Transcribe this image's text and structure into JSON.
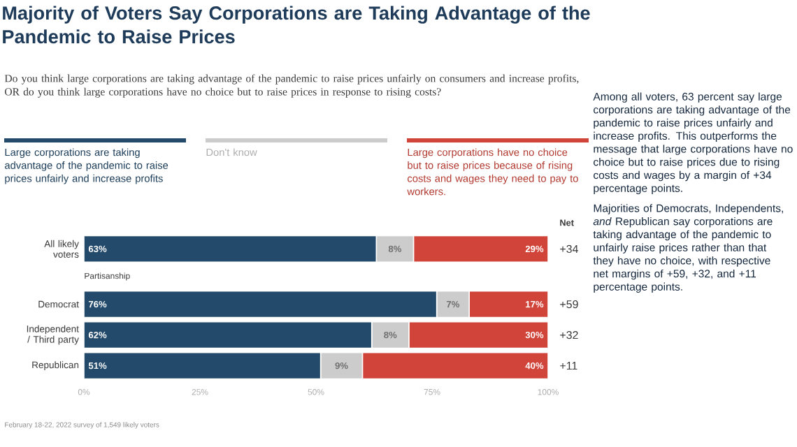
{
  "chart_data": {
    "type": "bar",
    "orientation": "horizontal",
    "stacked": true,
    "title": "Majority of Voters Say Corporations are Taking Advantage of the Pandemic to Raise Prices",
    "subtitle": "Do you think large corporations are taking advantage of the pandemic to raise prices unfairly on consumers and increase profits, OR do you think large corporations have no choice but to raise prices in response to rising costs?",
    "categories": [
      "All likely voters",
      "Democrat",
      "Independent / Third party",
      "Republican"
    ],
    "series": [
      {
        "name": "Large corporations are taking advantage of the pandemic to raise prices unfairly and increase profits",
        "color": "#234a6b",
        "values": [
          63,
          76,
          62,
          51
        ],
        "value_labels": [
          "63%",
          "76%",
          "62%",
          "51%"
        ]
      },
      {
        "name": "Don't know",
        "color": "#cccccc",
        "values": [
          8,
          7,
          8,
          9
        ],
        "value_labels": [
          "8%",
          "7%",
          "8%",
          "9%"
        ]
      },
      {
        "name": "Large corporations have no choice but to raise prices because of rising costs and wages they need to pay to workers.",
        "color": "#d1443a",
        "values": [
          29,
          17,
          30,
          40
        ],
        "value_labels": [
          "29%",
          "17%",
          "30%",
          "40%"
        ]
      }
    ],
    "xlim": [
      0,
      100
    ],
    "xticks": [
      {
        "value": 0,
        "label": "0%"
      },
      {
        "value": 25,
        "label": "25%"
      },
      {
        "value": 50,
        "label": "50%"
      },
      {
        "value": 75,
        "label": "75%"
      },
      {
        "value": 100,
        "label": "100%"
      }
    ],
    "legend": "top",
    "annotations": [
      "Partisanship",
      "Net",
      "+34",
      "+59",
      "+32",
      "+11",
      "February 18-22, 2022 survey of 1,549 likely voters",
      "Among all voters, 63 percent say large corporations are taking advantage of the pandemic to raise prices unfairly and increase profits. This outperforms the message that large corporations have no choice but to raise prices due to rising costs and wages by a margin of +34 percentage points.",
      "Majorities of Democrats, Independents, *and* Republican say corporations are taking advantage of the pandemic to unfairly raise prices rather than that they have no choice, with respective net margins of +59, +32, and +11 percentage points."
    ]
  }
}
